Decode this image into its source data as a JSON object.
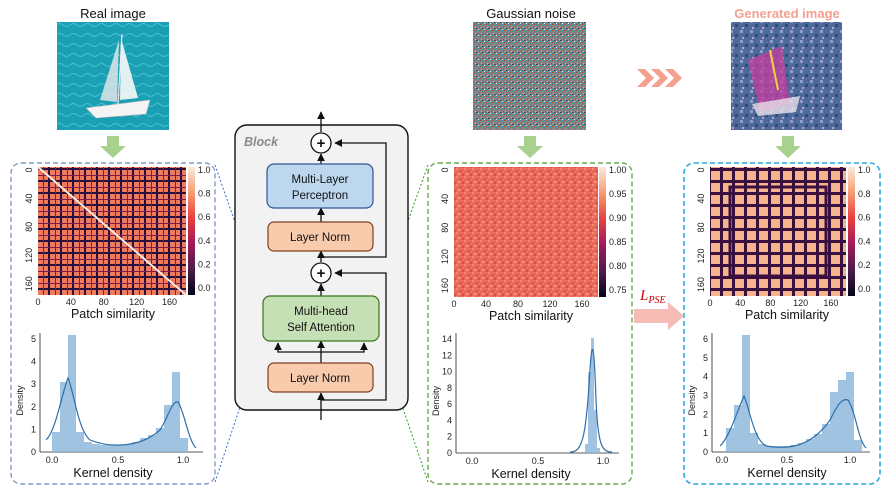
{
  "titles": {
    "real": "Real image",
    "noise": "Gaussian noise",
    "generated": "Generated image"
  },
  "block": {
    "title": "Block",
    "mlp_line1": "Multi-Layer",
    "mlp_line2": "Perceptron",
    "layer_norm_top": "Layer Norm",
    "mhsa_line1": "Multi-head",
    "mhsa_line2": "Self Attention",
    "layer_norm_bottom": "Layer Norm",
    "plus": "+"
  },
  "loss": {
    "symbol": "L",
    "subscript": "PSE"
  },
  "panels": [
    {
      "id": "real",
      "heatmap_caption": "Patch similarity",
      "kde_caption": "Kernel density",
      "heat_x_ticks": [
        "0",
        "40",
        "80",
        "120",
        "160"
      ],
      "heat_y_ticks": [
        "0",
        "40",
        "80",
        "120",
        "160"
      ],
      "colorbar_ticks": [
        "1.0",
        "0.8",
        "0.6",
        "0.4",
        "0.2",
        "0.0"
      ],
      "kde_y_label": "Density",
      "kde_y_ticks": [
        "0",
        "1",
        "2",
        "3",
        "4",
        "5"
      ],
      "kde_x_ticks": [
        "0.0",
        "0.5",
        "1.0"
      ]
    },
    {
      "id": "noise",
      "heatmap_caption": "Patch similarity",
      "kde_caption": "Kernel density",
      "heat_x_ticks": [
        "0",
        "40",
        "80",
        "120",
        "160"
      ],
      "heat_y_ticks": [
        "0",
        "40",
        "80",
        "120",
        "160"
      ],
      "colorbar_ticks": [
        "1.00",
        "0.95",
        "0.90",
        "0.85",
        "0.80",
        "0.75"
      ],
      "kde_y_label": "Density",
      "kde_y_ticks": [
        "0",
        "2",
        "4",
        "6",
        "8",
        "10",
        "12",
        "14"
      ],
      "kde_x_ticks": [
        "0.0",
        "0.5",
        "1.0"
      ]
    },
    {
      "id": "generated",
      "heatmap_caption": "Patch similarity",
      "kde_caption": "Kernel density",
      "heat_x_ticks": [
        "0",
        "40",
        "80",
        "120",
        "160"
      ],
      "heat_y_ticks": [
        "0",
        "40",
        "80",
        "120",
        "160"
      ],
      "colorbar_ticks": [
        "1.0",
        "0.8",
        "0.6",
        "0.4",
        "0.2",
        "0.0"
      ],
      "kde_y_label": "Density",
      "kde_y_ticks": [
        "0",
        "1",
        "2",
        "3",
        "4",
        "5",
        "6"
      ],
      "kde_x_ticks": [
        "0.0",
        "0.5",
        "1.0"
      ]
    }
  ],
  "colors": {
    "panel_real_border": "#7f9bc4",
    "panel_noise_border": "#6aa84f",
    "panel_generated_border": "#2aa9e0",
    "down_arrow": "#a9d18e",
    "forward_chevrons": "#f4a091",
    "generated_title": "#f4a091",
    "mlp_fill": "#bdd7ee",
    "layer_norm_fill": "#f8cbad",
    "mhsa_fill": "#c5e0b4",
    "kde_bar": "#8fb9dc",
    "kde_line": "#2f6fa8"
  }
}
